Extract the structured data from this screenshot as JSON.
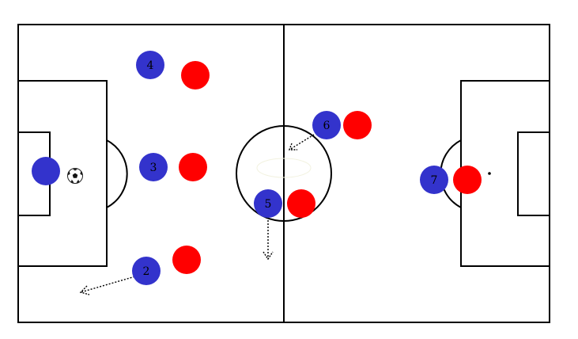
{
  "colors": {
    "pitch_background": "#ffffff",
    "pitch_lines": "#000000",
    "team_blue": "#3333cc",
    "team_red": "#ff0000"
  },
  "blue_players": [
    {
      "id": "goalkeeper",
      "label": ""
    },
    {
      "id": "player-2",
      "label": "2"
    },
    {
      "id": "player-3",
      "label": "3"
    },
    {
      "id": "player-4",
      "label": "4"
    },
    {
      "id": "player-5",
      "label": "5"
    },
    {
      "id": "player-6",
      "label": "6"
    },
    {
      "id": "player-7",
      "label": "7"
    }
  ],
  "red_players": [
    {
      "id": "red-1"
    },
    {
      "id": "red-2"
    },
    {
      "id": "red-3"
    },
    {
      "id": "red-4"
    },
    {
      "id": "red-5"
    },
    {
      "id": "red-6"
    }
  ],
  "ball": {
    "icon": "soccer-ball-icon"
  },
  "runs": [
    {
      "id": "run-player-2",
      "icon": "dotted-arrow-icon"
    },
    {
      "id": "run-player-5",
      "icon": "dotted-arrow-icon"
    },
    {
      "id": "run-player-6",
      "icon": "dotted-arrow-icon"
    }
  ]
}
